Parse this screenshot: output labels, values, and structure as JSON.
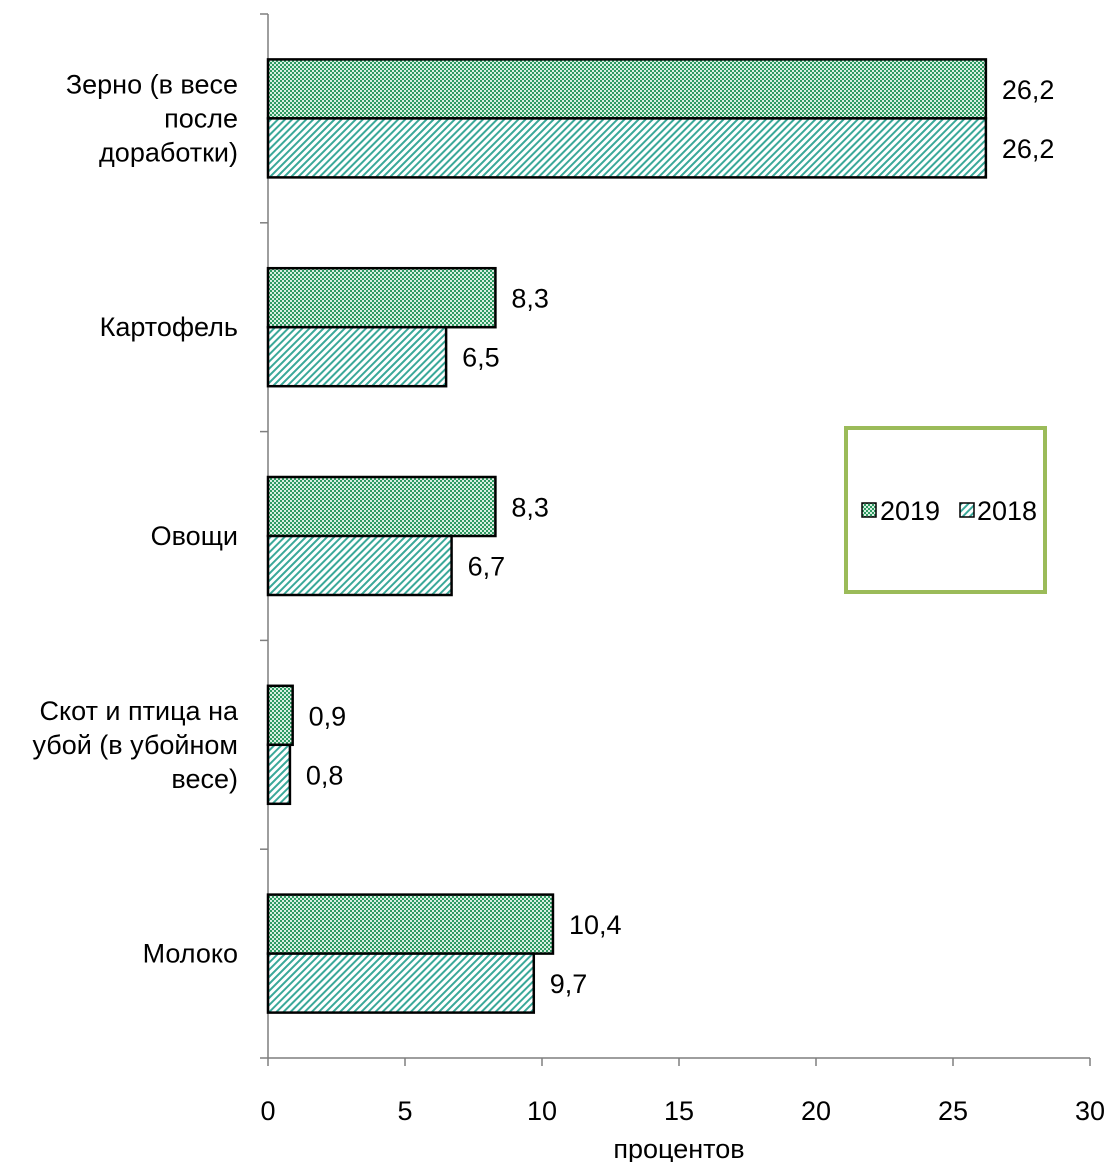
{
  "chart_data": {
    "type": "bar",
    "orientation": "horizontal",
    "categories": [
      [
        "Зерно (в  весе",
        "после",
        "доработки)"
      ],
      [
        "Картофель"
      ],
      [
        "Овощи"
      ],
      [
        "Скот и птица на",
        "убой (в убойном",
        "весе)"
      ],
      [
        "Молоко"
      ]
    ],
    "series": [
      {
        "name": "2019",
        "values": [
          26.2,
          8.3,
          8.3,
          0.9,
          10.4
        ],
        "labels": [
          "26,2",
          "8,3",
          "8,3",
          "0,9",
          "10,4"
        ],
        "color": "#3aa870",
        "pattern": "dots"
      },
      {
        "name": "2018",
        "values": [
          26.2,
          6.5,
          6.7,
          0.8,
          9.7
        ],
        "labels": [
          "26,2",
          "6,5",
          "6,7",
          "0,8",
          "9,7"
        ],
        "color": "#3aa899",
        "pattern": "hatch"
      }
    ],
    "xlabel": "процентов",
    "xlim": [
      0,
      30
    ],
    "xticks": [
      "0",
      "5",
      "10",
      "15",
      "20",
      "25",
      "30"
    ],
    "grid": false,
    "legend_placement": "right",
    "legend_border_color": "#9bbb59"
  }
}
